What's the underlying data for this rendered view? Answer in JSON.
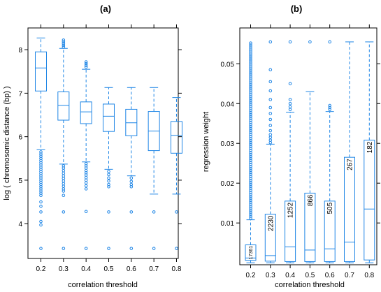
{
  "chart_data": [
    {
      "panel_label": "(a)",
      "type": "box",
      "xlabel": "correlation threshold",
      "ylabel": "log ( chromosomic distance (bp) )",
      "categories": [
        "0.2",
        "0.3",
        "0.4",
        "0.5",
        "0.6",
        "0.7",
        "0.8"
      ],
      "ylim": [
        3.2,
        8.5
      ],
      "yticks": [
        "4",
        "5",
        "6",
        "7",
        "8"
      ],
      "ytick_values": [
        4,
        5,
        6,
        7,
        8
      ],
      "boxes": [
        {
          "x": "0.2",
          "whislo": 5.7,
          "q1": 7.05,
          "med": 7.58,
          "q3": 7.95,
          "whishi": 8.27,
          "outliers": [
            5.65,
            5.6,
            5.55,
            5.5,
            5.45,
            5.4,
            5.35,
            5.3,
            5.25,
            5.2,
            5.15,
            5.1,
            5.05,
            5.0,
            4.95,
            4.9,
            4.85,
            4.8,
            4.75,
            4.7,
            4.65,
            4.5,
            4.4,
            4.27,
            4.05,
            3.97,
            3.43
          ]
        },
        {
          "x": "0.3",
          "whislo": 5.37,
          "q1": 6.38,
          "med": 6.72,
          "q3": 7.03,
          "whishi": 8.03,
          "outliers": [
            8.06,
            8.1,
            8.14,
            8.18,
            8.22,
            5.33,
            5.28,
            5.22,
            5.16,
            5.1,
            5.04,
            4.98,
            4.92,
            4.86,
            4.8,
            4.75,
            4.65,
            4.27,
            3.43
          ]
        },
        {
          "x": "0.4",
          "whislo": 5.42,
          "q1": 6.3,
          "med": 6.57,
          "q3": 6.8,
          "whishi": 7.55,
          "outliers": [
            7.6,
            7.64,
            7.68,
            7.72,
            5.38,
            5.33,
            5.28,
            5.22,
            5.17,
            5.12,
            5.06,
            5.0,
            4.94,
            4.87,
            4.8,
            4.28,
            3.43
          ]
        },
        {
          "x": "0.5",
          "whislo": 5.25,
          "q1": 6.12,
          "med": 6.47,
          "q3": 6.75,
          "whishi": 7.13,
          "outliers": [
            5.2,
            5.13,
            5.05,
            4.98,
            4.9,
            4.85,
            4.27,
            3.43
          ]
        },
        {
          "x": "0.6",
          "whislo": 5.1,
          "q1": 6.02,
          "med": 6.32,
          "q3": 6.63,
          "whishi": 7.13,
          "outliers": [
            5.05,
            4.97,
            4.9,
            4.85,
            4.27,
            3.43
          ]
        },
        {
          "x": "0.7",
          "whislo": 4.68,
          "q1": 5.68,
          "med": 6.13,
          "q3": 6.58,
          "whishi": 7.13,
          "outliers": [
            4.27,
            3.43
          ]
        },
        {
          "x": "0.8",
          "whislo": 4.68,
          "q1": 5.62,
          "med": 6.03,
          "q3": 6.35,
          "whishi": 6.9,
          "outliers": [
            4.27,
            3.43
          ]
        }
      ]
    },
    {
      "panel_label": "(b)",
      "type": "box",
      "xlabel": "correlation threshold",
      "ylabel": "regression weight",
      "categories": [
        "0.2",
        "0.3",
        "0.4",
        "0.5",
        "0.6",
        "0.7",
        "0.8"
      ],
      "ylim": [
        -0.0005,
        0.059
      ],
      "yticks": [
        "0.01",
        "0.02",
        "0.03",
        "0.04",
        "0.05"
      ],
      "ytick_values": [
        0.01,
        0.02,
        0.03,
        0.04,
        0.05
      ],
      "boxes": [
        {
          "x": "0.2",
          "count_label": "17361",
          "whislo": 0.0,
          "q1": 0.0006,
          "med": 0.0012,
          "q3": 0.0045,
          "whishi": 0.0108,
          "outliers_from": 0.0112,
          "outliers_to": 0.0555,
          "outliers_step": 0.0005
        },
        {
          "x": "0.3",
          "count_label": "2230",
          "whislo": 0.0,
          "q1": 0.0004,
          "med": 0.0018,
          "q3": 0.0122,
          "whishi": 0.0298,
          "outliers": [
            0.0302,
            0.0308,
            0.0315,
            0.0322,
            0.0332,
            0.0345,
            0.036,
            0.0375,
            0.039,
            0.041,
            0.0432,
            0.0455,
            0.0485,
            0.0555
          ]
        },
        {
          "x": "0.4",
          "count_label": "1252",
          "whislo": 0.0,
          "q1": 0.0003,
          "med": 0.004,
          "q3": 0.0155,
          "whishi": 0.0378,
          "outliers": [
            0.0385,
            0.0392,
            0.04,
            0.041,
            0.045,
            0.0555
          ]
        },
        {
          "x": "0.5",
          "count_label": "866",
          "whislo": 0.0,
          "q1": 0.0003,
          "med": 0.0032,
          "q3": 0.0175,
          "whishi": 0.043,
          "outliers": [
            0.0555
          ]
        },
        {
          "x": "0.6",
          "count_label": "505",
          "whislo": 0.0,
          "q1": 0.0003,
          "med": 0.0035,
          "q3": 0.0155,
          "whishi": 0.038,
          "outliers": [
            0.0385,
            0.039,
            0.0395,
            0.0555
          ]
        },
        {
          "x": "0.7",
          "count_label": "267",
          "whislo": 0.0,
          "q1": 0.0003,
          "med": 0.0052,
          "q3": 0.0265,
          "whishi": 0.0555,
          "outliers": []
        },
        {
          "x": "0.8",
          "count_label": "182",
          "whislo": 0.0,
          "q1": 0.0007,
          "med": 0.0135,
          "q3": 0.0308,
          "whishi": 0.0555,
          "outliers": []
        }
      ]
    }
  ]
}
